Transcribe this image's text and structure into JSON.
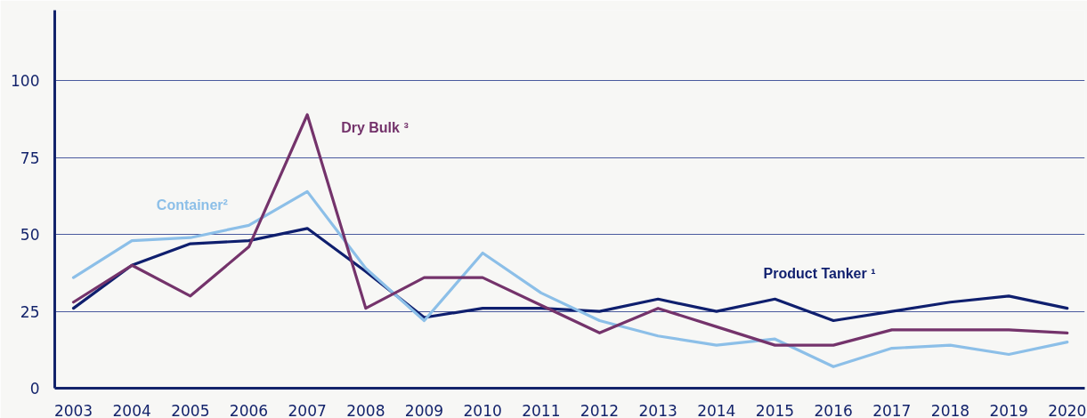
{
  "chart_data": {
    "type": "line",
    "categories": [
      "2003",
      "2004",
      "2005",
      "2006",
      "2007",
      "2008",
      "2009",
      "2010",
      "2011",
      "2012",
      "2013",
      "2014",
      "2015",
      "2016",
      "2017",
      "2018",
      "2019",
      "2020"
    ],
    "ylim": [
      0,
      123
    ],
    "yticks": [
      0,
      25,
      50,
      75,
      100
    ],
    "grid": "y",
    "line_style": "solid",
    "series": [
      {
        "name": "Product Tanker ¹",
        "color": "#0f1f6e",
        "values": [
          26,
          40,
          47,
          48,
          52,
          38,
          23,
          26,
          26,
          25,
          29,
          25,
          29,
          22,
          25,
          28,
          30,
          26
        ]
      },
      {
        "name": "Container²",
        "color": "#8cbfe8",
        "values": [
          36,
          48,
          49,
          53,
          64,
          39,
          22,
          44,
          31,
          22,
          17,
          14,
          16,
          7,
          13,
          14,
          11,
          15
        ]
      },
      {
        "name": "Dry Bulk ³",
        "color": "#74336b",
        "values": [
          28,
          40,
          30,
          46,
          89,
          26,
          36,
          36,
          27,
          18,
          26,
          20,
          14,
          14,
          19,
          19,
          19,
          18
        ]
      }
    ]
  }
}
